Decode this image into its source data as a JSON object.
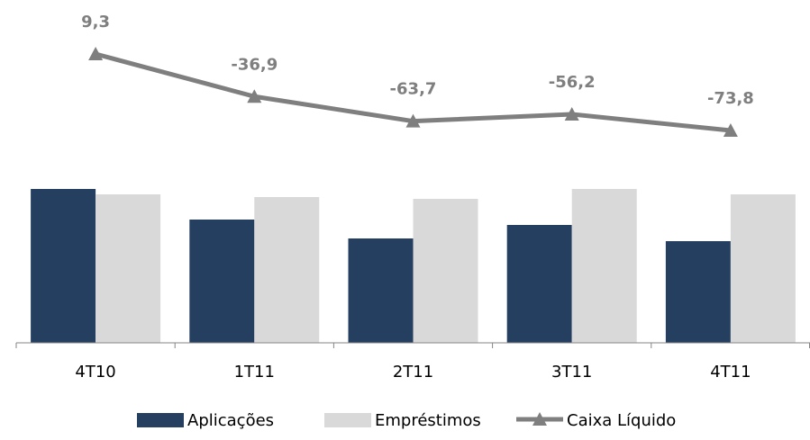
{
  "chart_data": {
    "type": "bar",
    "categories": [
      "4T10",
      "1T11",
      "2T11",
      "3T11",
      "4T11"
    ],
    "series": [
      {
        "name": "Aplicações",
        "type": "bar",
        "color": "#243f60",
        "values": [
          171,
          137,
          116,
          131,
          113
        ]
      },
      {
        "name": "Empréstimos",
        "type": "bar",
        "color": "#d9d9d9",
        "values": [
          165,
          162,
          160,
          171,
          165
        ]
      },
      {
        "name": "Caixa Líquido",
        "type": "line",
        "marker": "triangle",
        "color": "#7f7f7f",
        "values": [
          9.3,
          -36.9,
          -63.7,
          -56.2,
          -73.8
        ],
        "labels": [
          "9,3",
          "-36,9",
          "-63,7",
          "-56,2",
          "-73,8"
        ]
      }
    ],
    "legend": "bottom",
    "grid": false
  }
}
